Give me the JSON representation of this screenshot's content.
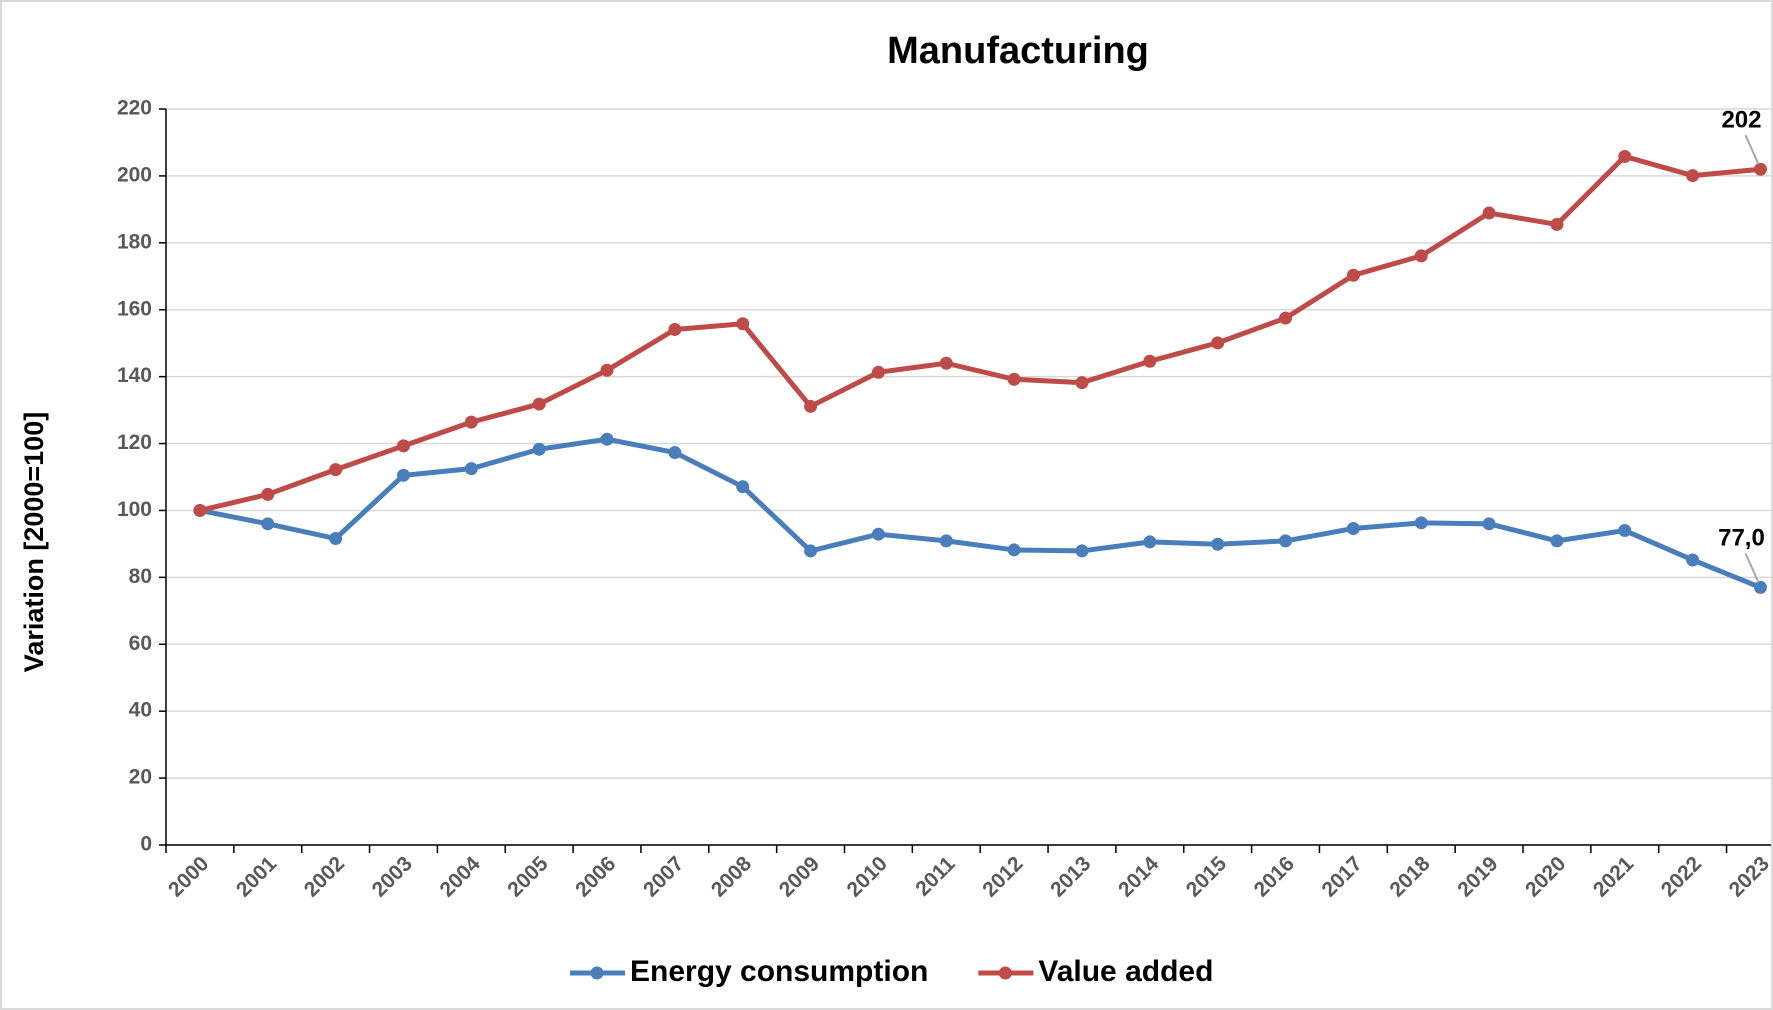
{
  "chart_data": {
    "type": "line",
    "title": "Manufacturing",
    "y_label": "Variation [2000=100]",
    "categories": [
      "2000",
      "2001",
      "2002",
      "2003",
      "2004",
      "2005",
      "2006",
      "2007",
      "2008",
      "2009",
      "2010",
      "2011",
      "2012",
      "2013",
      "2014",
      "2015",
      "2016",
      "2017",
      "2018",
      "2019",
      "2020",
      "2021",
      "2022",
      "2023"
    ],
    "series": [
      {
        "name": "Energy consumption",
        "color": "#4a7ebb",
        "values": [
          100,
          96.0,
          91.6,
          110.5,
          112.5,
          118.3,
          121.3,
          117.3,
          107.1,
          87.9,
          92.9,
          90.9,
          88.2,
          87.9,
          90.6,
          89.9,
          90.9,
          94.6,
          96.3,
          96.0,
          90.9,
          94.0,
          85.2,
          77.0
        ],
        "value_labels": [
          null,
          null,
          null,
          null,
          null,
          null,
          null,
          null,
          null,
          null,
          null,
          null,
          null,
          null,
          null,
          null,
          null,
          null,
          null,
          null,
          null,
          null,
          null,
          "77,0"
        ]
      },
      {
        "name": "Value added",
        "color": "#be4b48",
        "values": [
          100,
          104.8,
          112.2,
          119.3,
          126.4,
          131.8,
          141.9,
          154.1,
          155.8,
          131.1,
          141.3,
          144.0,
          139.2,
          138.2,
          144.6,
          150.1,
          157.5,
          170.3,
          176.1,
          188.9,
          185.5,
          205.8,
          200.1,
          202
        ],
        "value_labels": [
          null,
          null,
          null,
          null,
          null,
          null,
          null,
          null,
          null,
          null,
          null,
          null,
          null,
          null,
          null,
          null,
          null,
          null,
          null,
          null,
          null,
          null,
          null,
          "202"
        ]
      }
    ],
    "ylim": [
      0,
      220
    ],
    "yticks": [
      0,
      20,
      40,
      60,
      80,
      100,
      120,
      140,
      160,
      180,
      200,
      220
    ],
    "grid": true,
    "legend": "bottom"
  }
}
